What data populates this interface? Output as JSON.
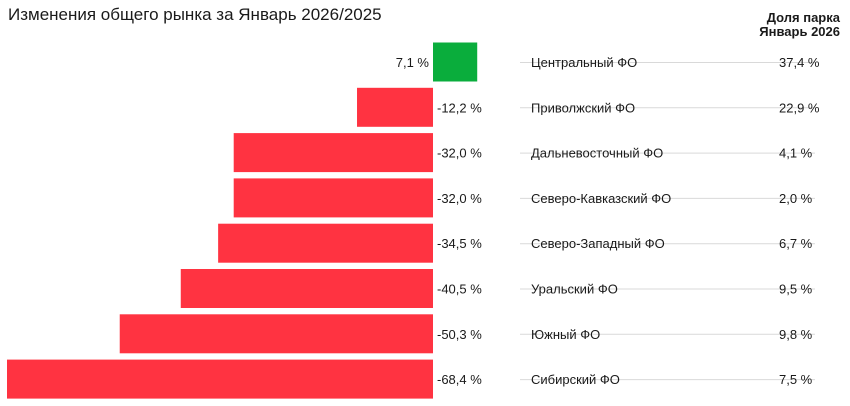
{
  "title": "Изменения общего рынка за Январь 2026/2025",
  "share_header": {
    "line1": "Доля парка",
    "line2": "Январь 2026"
  },
  "colors": {
    "positive": "#0aad3c",
    "negative": "#ff3341",
    "leader_line": "#d9d9d9"
  },
  "chart_data": {
    "type": "bar",
    "orientation": "horizontal",
    "title": "Изменения общего рынка за Январь 2026/2025",
    "categories": [
      "Центральный ФО",
      "Приволжский ФО",
      "Дальневосточный ФО",
      "Северо-Кавказский ФО",
      "Северо-Западный ФО",
      "Уральский ФО",
      "Южный ФО",
      "Сибирский ФО"
    ],
    "values": [
      7.1,
      -12.2,
      -32.0,
      -32.0,
      -34.5,
      -40.5,
      -50.3,
      -68.4
    ],
    "value_labels": [
      "7,1 %",
      "-12,2 %",
      "-32,0 %",
      "-32,0 %",
      "-34,5 %",
      "-40,5 %",
      "-50,3 %",
      "-68,4 %"
    ],
    "fleet_share": [
      37.4,
      22.9,
      4.1,
      2.0,
      6.7,
      9.5,
      9.8,
      7.5
    ],
    "fleet_share_labels": [
      "37,4 %",
      "22,9 %",
      "4,1 %",
      "2,0 %",
      "6,7 %",
      "9,5 %",
      "9,8 %",
      "7,5 %"
    ],
    "xlim": [
      -68.4,
      7.1
    ],
    "grid": false,
    "legend": "none"
  }
}
